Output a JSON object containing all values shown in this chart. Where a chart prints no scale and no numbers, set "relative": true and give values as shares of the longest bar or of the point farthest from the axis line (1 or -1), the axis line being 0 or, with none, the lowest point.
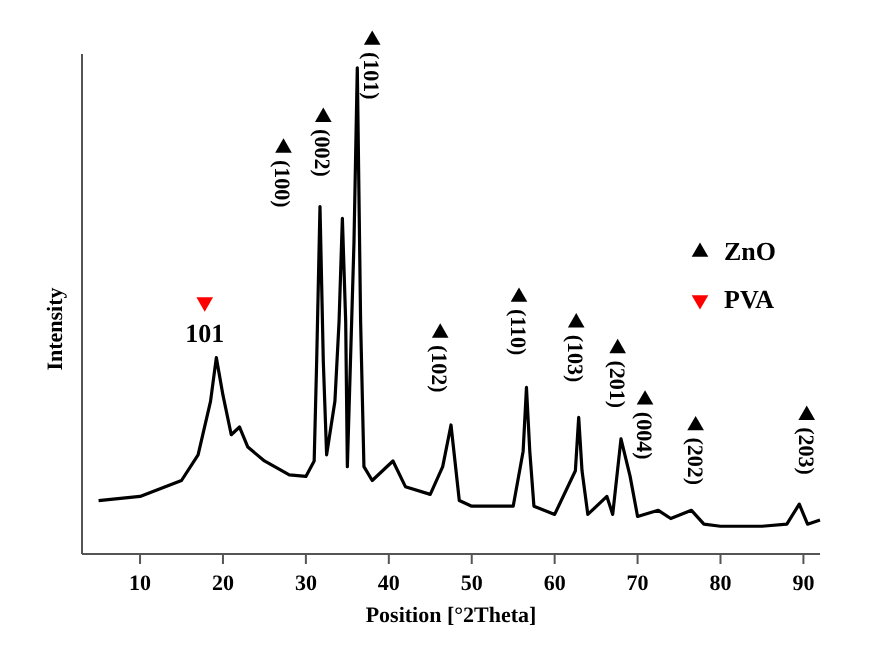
{
  "chart_data": {
    "type": "line",
    "relative": true,
    "xlabel": "Position [°2Theta]",
    "ylabel": "Intensity",
    "xlim": [
      3,
      92
    ],
    "xticks": [
      10,
      20,
      30,
      40,
      50,
      60,
      70,
      80,
      90
    ],
    "legend": "right",
    "tick_labels": "x",
    "series": [
      {
        "color": "#000000",
        "x": [
          5,
          10,
          15,
          17,
          18.5,
          19.2,
          20,
          21,
          22,
          23,
          25,
          28,
          30,
          31,
          31.3,
          31.7,
          32.1,
          32.5,
          33.5,
          34.0,
          34.4,
          34.8,
          35,
          35.8,
          36.2,
          36.6,
          37,
          38,
          40.5,
          42,
          45,
          46.5,
          47.5,
          48.5,
          50,
          55,
          56.2,
          56.6,
          57,
          57.5,
          60,
          62.5,
          62.9,
          63.3,
          64,
          66.3,
          67,
          68,
          69.1,
          70,
          72.5,
          74,
          76.5,
          78,
          80,
          85,
          88,
          89.5,
          90.5,
          92
        ],
        "values": [
          0.104,
          0.112,
          0.143,
          0.193,
          0.297,
          0.382,
          0.309,
          0.232,
          0.247,
          0.208,
          0.181,
          0.154,
          0.151,
          0.181,
          0.375,
          0.676,
          0.375,
          0.193,
          0.297,
          0.452,
          0.653,
          0.452,
          0.17,
          0.606,
          0.946,
          0.452,
          0.17,
          0.143,
          0.181,
          0.131,
          0.116,
          0.17,
          0.251,
          0.104,
          0.093,
          0.093,
          0.2,
          0.324,
          0.2,
          0.093,
          0.077,
          0.162,
          0.266,
          0.162,
          0.077,
          0.112,
          0.077,
          0.224,
          0.151,
          0.073,
          0.085,
          0.069,
          0.085,
          0.058,
          0.054,
          0.054,
          0.058,
          0.097,
          0.058,
          0.066
        ]
      },
      {
        "type": "scatter",
        "name": "ZnO",
        "color": "#000000",
        "marker": "triangle",
        "x": [
          27.3,
          32.1,
          38.0,
          46.2,
          55.7,
          62.6,
          67.6,
          70.9,
          77.0,
          90.4
        ],
        "values": [
          0.79,
          0.85,
          1.0,
          0.43,
          0.5,
          0.45,
          0.4,
          0.3,
          0.25,
          0.27
        ]
      },
      {
        "type": "scatter",
        "name": "PVA",
        "color": "#ff0000",
        "marker": "triangle",
        "x": [
          17.8
        ],
        "values": [
          0.49
        ]
      }
    ],
    "annotations": [
      {
        "text": "101",
        "x": 17.8,
        "y": 0.49
      },
      {
        "text": "(100)",
        "x": 27.3,
        "y": 0.79
      },
      {
        "text": "(002)",
        "x": 32.1,
        "y": 0.85
      },
      {
        "text": "(101)",
        "x": 38.0,
        "y": 1.0
      },
      {
        "text": "(102)",
        "x": 46.2,
        "y": 0.43
      },
      {
        "text": "(110)",
        "x": 55.7,
        "y": 0.5
      },
      {
        "text": "(103)",
        "x": 62.6,
        "y": 0.45
      },
      {
        "text": "(201)",
        "x": 67.6,
        "y": 0.4
      },
      {
        "text": "(004)",
        "x": 70.9,
        "y": 0.3
      },
      {
        "text": "(202)",
        "x": 77.0,
        "y": 0.25
      },
      {
        "text": "(203)",
        "x": 90.4,
        "y": 0.27
      }
    ]
  }
}
